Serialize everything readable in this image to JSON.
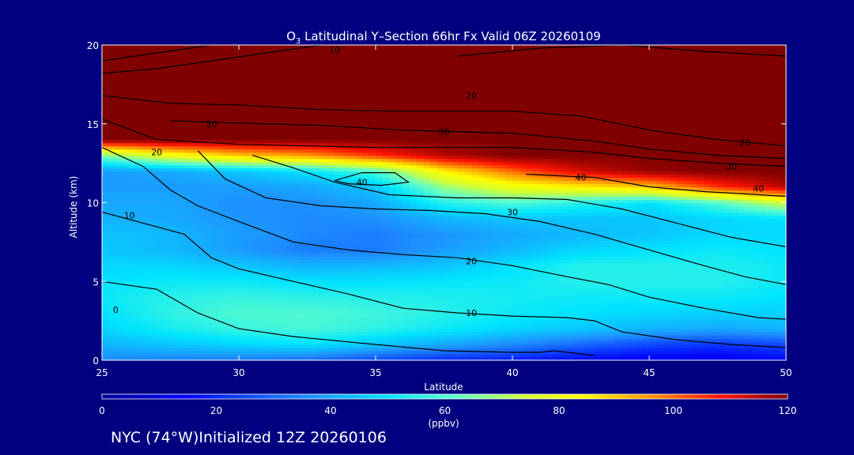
{
  "chart_data": {
    "type": "heatmap",
    "title": {
      "species_main": "O",
      "species_sub": "3",
      "text": " Latitudinal Y–Section 66hr  Fx Valid 06Z 20260109"
    },
    "xlabel": "Latitude",
    "ylabel": "Altitude (km)",
    "xlim": [
      25,
      50
    ],
    "ylim": [
      0,
      20
    ],
    "xticks": [
      25,
      30,
      35,
      40,
      45,
      50
    ],
    "yticks": [
      0,
      5,
      10,
      15,
      20
    ],
    "colorbar": {
      "ticks": [
        0,
        20,
        40,
        60,
        80,
        100,
        120
      ],
      "unit": "(ppbv)",
      "range": [
        0,
        120
      ]
    },
    "x": [
      25,
      27.5,
      30,
      32.5,
      35,
      37.5,
      40,
      42.5,
      45,
      47.5,
      50
    ],
    "y": [
      0,
      1,
      2,
      3,
      4,
      5,
      6,
      7,
      8,
      9,
      10,
      11,
      12,
      13,
      14,
      15,
      16,
      17,
      18,
      19,
      20
    ],
    "z": [
      [
        35,
        33,
        32,
        30,
        25,
        20,
        18,
        15,
        12,
        12,
        15
      ],
      [
        42,
        45,
        48,
        50,
        45,
        40,
        35,
        30,
        25,
        22,
        25
      ],
      [
        48,
        53,
        57,
        59,
        56,
        52,
        48,
        45,
        42,
        40,
        42
      ],
      [
        50,
        56,
        60,
        60,
        58,
        55,
        52,
        50,
        48,
        47,
        47
      ],
      [
        52,
        55,
        57,
        56,
        55,
        54,
        53,
        52,
        52,
        52,
        50
      ],
      [
        50,
        52,
        52,
        50,
        50,
        51,
        52,
        55,
        55,
        55,
        52
      ],
      [
        48,
        48,
        45,
        42,
        43,
        45,
        50,
        55,
        55,
        54,
        52
      ],
      [
        45,
        43,
        38,
        33,
        33,
        38,
        43,
        48,
        50,
        52,
        50
      ],
      [
        45,
        43,
        38,
        35,
        33,
        37,
        40,
        43,
        45,
        48,
        48
      ],
      [
        42,
        40,
        37,
        35,
        36,
        42,
        45,
        45,
        45,
        48,
        50
      ],
      [
        40,
        40,
        36,
        36,
        40,
        55,
        60,
        55,
        50,
        60,
        75
      ],
      [
        38,
        38,
        38,
        40,
        45,
        68,
        80,
        85,
        90,
        105,
        115
      ],
      [
        38,
        40,
        45,
        50,
        60,
        85,
        100,
        112,
        118,
        120,
        120
      ],
      [
        65,
        80,
        90,
        95,
        105,
        115,
        120,
        120,
        120,
        120,
        120
      ],
      [
        120,
        120,
        120,
        120,
        120,
        120,
        120,
        120,
        120,
        120,
        120
      ],
      [
        120,
        120,
        120,
        120,
        120,
        120,
        120,
        120,
        120,
        120,
        120
      ],
      [
        120,
        120,
        120,
        120,
        120,
        120,
        120,
        120,
        120,
        120,
        120
      ],
      [
        120,
        120,
        120,
        120,
        120,
        120,
        120,
        120,
        120,
        120,
        120
      ],
      [
        120,
        120,
        120,
        120,
        120,
        120,
        120,
        120,
        120,
        120,
        120
      ],
      [
        120,
        120,
        120,
        120,
        120,
        120,
        120,
        120,
        120,
        120,
        120
      ],
      [
        120,
        120,
        120,
        120,
        120,
        120,
        120,
        120,
        120,
        120,
        120
      ]
    ],
    "contours": [
      {
        "label": "0",
        "points": [
          [
            25,
            5.0
          ],
          [
            27,
            4.5
          ],
          [
            28.5,
            3.0
          ],
          [
            30,
            2.0
          ],
          [
            32,
            1.5
          ],
          [
            35,
            1.0
          ],
          [
            37.5,
            0.6
          ],
          [
            40,
            0.5
          ],
          [
            41,
            0.5
          ],
          [
            41.5,
            0.6
          ],
          [
            43,
            0.3
          ]
        ]
      },
      {
        "label": "10",
        "points": [
          [
            25,
            9.4
          ],
          [
            26.5,
            8.7
          ],
          [
            28,
            8.0
          ],
          [
            29,
            6.5
          ],
          [
            30,
            5.8
          ],
          [
            32,
            5.0
          ],
          [
            34,
            4.2
          ],
          [
            36,
            3.3
          ],
          [
            38,
            3.0
          ],
          [
            40,
            2.8
          ],
          [
            42,
            2.7
          ],
          [
            43,
            2.5
          ],
          [
            44,
            1.8
          ],
          [
            46,
            1.3
          ],
          [
            48,
            1.0
          ],
          [
            50,
            0.8
          ]
        ]
      },
      {
        "label": "20",
        "points": [
          [
            25,
            13.5
          ],
          [
            26.5,
            12.3
          ],
          [
            27.5,
            10.8
          ],
          [
            28.5,
            9.8
          ],
          [
            30,
            8.8
          ],
          [
            32,
            7.5
          ],
          [
            34,
            7.0
          ],
          [
            36,
            6.7
          ],
          [
            38,
            6.5
          ],
          [
            40,
            6.0
          ],
          [
            42,
            5.3
          ],
          [
            43.5,
            4.8
          ],
          [
            45,
            4.0
          ],
          [
            47,
            3.3
          ],
          [
            49,
            2.7
          ],
          [
            50,
            2.6
          ]
        ]
      },
      {
        "label": "30",
        "points": [
          [
            28.5,
            13.3
          ],
          [
            29.5,
            11.5
          ],
          [
            31,
            10.3
          ],
          [
            33,
            9.8
          ],
          [
            35,
            9.6
          ],
          [
            37,
            9.5
          ],
          [
            39,
            9.3
          ],
          [
            41,
            8.8
          ],
          [
            43,
            8.0
          ],
          [
            45,
            7.0
          ],
          [
            47,
            6.0
          ],
          [
            48.5,
            5.3
          ],
          [
            50,
            4.8
          ]
        ]
      },
      {
        "label": "40",
        "points": [
          [
            30.5,
            13.0
          ],
          [
            32,
            12.2
          ],
          [
            33.5,
            11.3
          ],
          [
            35.5,
            10.5
          ],
          [
            38,
            10.3
          ],
          [
            40,
            10.3
          ],
          [
            42,
            10.2
          ],
          [
            44,
            9.6
          ],
          [
            46,
            8.7
          ],
          [
            48,
            7.8
          ],
          [
            50,
            7.2
          ]
        ]
      },
      {
        "label": "40",
        "points": [
          [
            33.5,
            11.4
          ],
          [
            34.5,
            11.9
          ],
          [
            35.7,
            11.9
          ],
          [
            36.2,
            11.3
          ],
          [
            35.2,
            11.1
          ],
          [
            34.0,
            11.2
          ],
          [
            33.5,
            11.4
          ]
        ]
      },
      {
        "label": "40",
        "points": [
          [
            40.5,
            11.8
          ],
          [
            43,
            11.6
          ],
          [
            45,
            11.0
          ],
          [
            47,
            10.7
          ],
          [
            49,
            10.5
          ],
          [
            50,
            10.4
          ]
        ]
      },
      {
        "label": "30",
        "points": [
          [
            25,
            15.3
          ],
          [
            27,
            14.0
          ],
          [
            30,
            13.7
          ],
          [
            35,
            13.5
          ],
          [
            40,
            13.5
          ],
          [
            43,
            13.2
          ],
          [
            45,
            12.8
          ],
          [
            47.5,
            12.5
          ],
          [
            50,
            12.3
          ]
        ]
      },
      {
        "label": "20",
        "points": [
          [
            25,
            16.8
          ],
          [
            27.5,
            16.3
          ],
          [
            30,
            16.2
          ],
          [
            33,
            15.9
          ],
          [
            36,
            15.8
          ],
          [
            40,
            15.8
          ],
          [
            42.5,
            15.5
          ],
          [
            45,
            14.6
          ],
          [
            47.5,
            14.0
          ],
          [
            50,
            13.6
          ]
        ]
      },
      {
        "label": "30",
        "points": [
          [
            27.5,
            15.2
          ],
          [
            29,
            15.1
          ],
          [
            31,
            15.0
          ],
          [
            33,
            14.9
          ],
          [
            36,
            14.6
          ],
          [
            40,
            14.4
          ],
          [
            43,
            13.9
          ],
          [
            45,
            13.4
          ],
          [
            47.5,
            13.0
          ],
          [
            50,
            12.8
          ]
        ]
      },
      {
        "label": "20",
        "points": [
          [
            25,
            18.2
          ],
          [
            27,
            18.5
          ],
          [
            29,
            19.0
          ],
          [
            31,
            19.5
          ],
          [
            33,
            20.0
          ]
        ]
      },
      {
        "label": "10",
        "points": [
          [
            25,
            19.0
          ],
          [
            27,
            19.5
          ],
          [
            29,
            20.0
          ]
        ]
      },
      {
        "label": "20",
        "points": [
          [
            38,
            19.3
          ],
          [
            41,
            19.8
          ],
          [
            44,
            20.0
          ],
          [
            47,
            19.6
          ],
          [
            50,
            19.3
          ]
        ]
      }
    ],
    "contour_labels": [
      {
        "text": "0",
        "x": 25.5,
        "y": 3.2
      },
      {
        "text": "10",
        "x": 26.0,
        "y": 9.2
      },
      {
        "text": "20",
        "x": 27.0,
        "y": 13.2
      },
      {
        "text": "20",
        "x": 38.5,
        "y": 6.3
      },
      {
        "text": "10",
        "x": 38.5,
        "y": 3.0
      },
      {
        "text": "30",
        "x": 40.0,
        "y": 9.4
      },
      {
        "text": "40",
        "x": 34.5,
        "y": 11.3
      },
      {
        "text": "40",
        "x": 42.5,
        "y": 11.6
      },
      {
        "text": "30",
        "x": 29.0,
        "y": 15.0
      },
      {
        "text": "30",
        "x": 37.5,
        "y": 14.5
      },
      {
        "text": "20",
        "x": 48.5,
        "y": 13.8
      },
      {
        "text": "30",
        "x": 48.0,
        "y": 12.3
      },
      {
        "text": "40",
        "x": 49.0,
        "y": 10.9
      },
      {
        "text": "20",
        "x": 38.5,
        "y": 16.8
      },
      {
        "text": "10",
        "x": 33.5,
        "y": 19.7
      }
    ]
  },
  "footer": "NYC (74°W)Initialized 12Z 20260106"
}
